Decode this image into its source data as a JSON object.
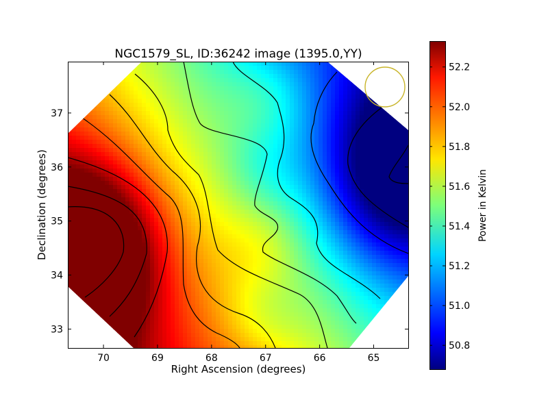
{
  "chart_data": {
    "type": "heatmap",
    "title": "NGC1579_SL, ID:36242 image (1395.0,YY)",
    "xlabel": "Right Ascension (degrees)",
    "ylabel": "Declination (degrees)",
    "xlim": [
      70.66,
      64.36
    ],
    "ylim": [
      32.65,
      37.95
    ],
    "x_ticks": [
      "70",
      "69",
      "68",
      "67",
      "66",
      "65"
    ],
    "x_tick_values": [
      70,
      69,
      68,
      67,
      66,
      65
    ],
    "y_ticks": [
      "33",
      "34",
      "35",
      "36",
      "37"
    ],
    "y_tick_values": [
      33,
      34,
      35,
      36,
      37
    ],
    "colorbar": {
      "label": "Power in Kelvin",
      "colormap": "jet",
      "range": [
        50.68,
        52.33
      ],
      "ticks": [
        "50.8",
        "51.0",
        "51.2",
        "51.4",
        "51.6",
        "51.8",
        "52.0",
        "52.2"
      ],
      "tick_values": [
        50.8,
        51.0,
        51.2,
        51.4,
        51.6,
        51.8,
        52.0,
        52.2
      ]
    },
    "field": {
      "shape": "diamond",
      "max": {
        "ra": 70.4,
        "dec": 34.4,
        "value": 52.33
      },
      "min": {
        "ra": 64.6,
        "dec": 35.9,
        "value": 50.68
      },
      "contours": "black"
    },
    "beam": {
      "ra": 64.8,
      "dec": 37.5,
      "radius_deg": 0.38,
      "color": "#c8b428"
    }
  }
}
